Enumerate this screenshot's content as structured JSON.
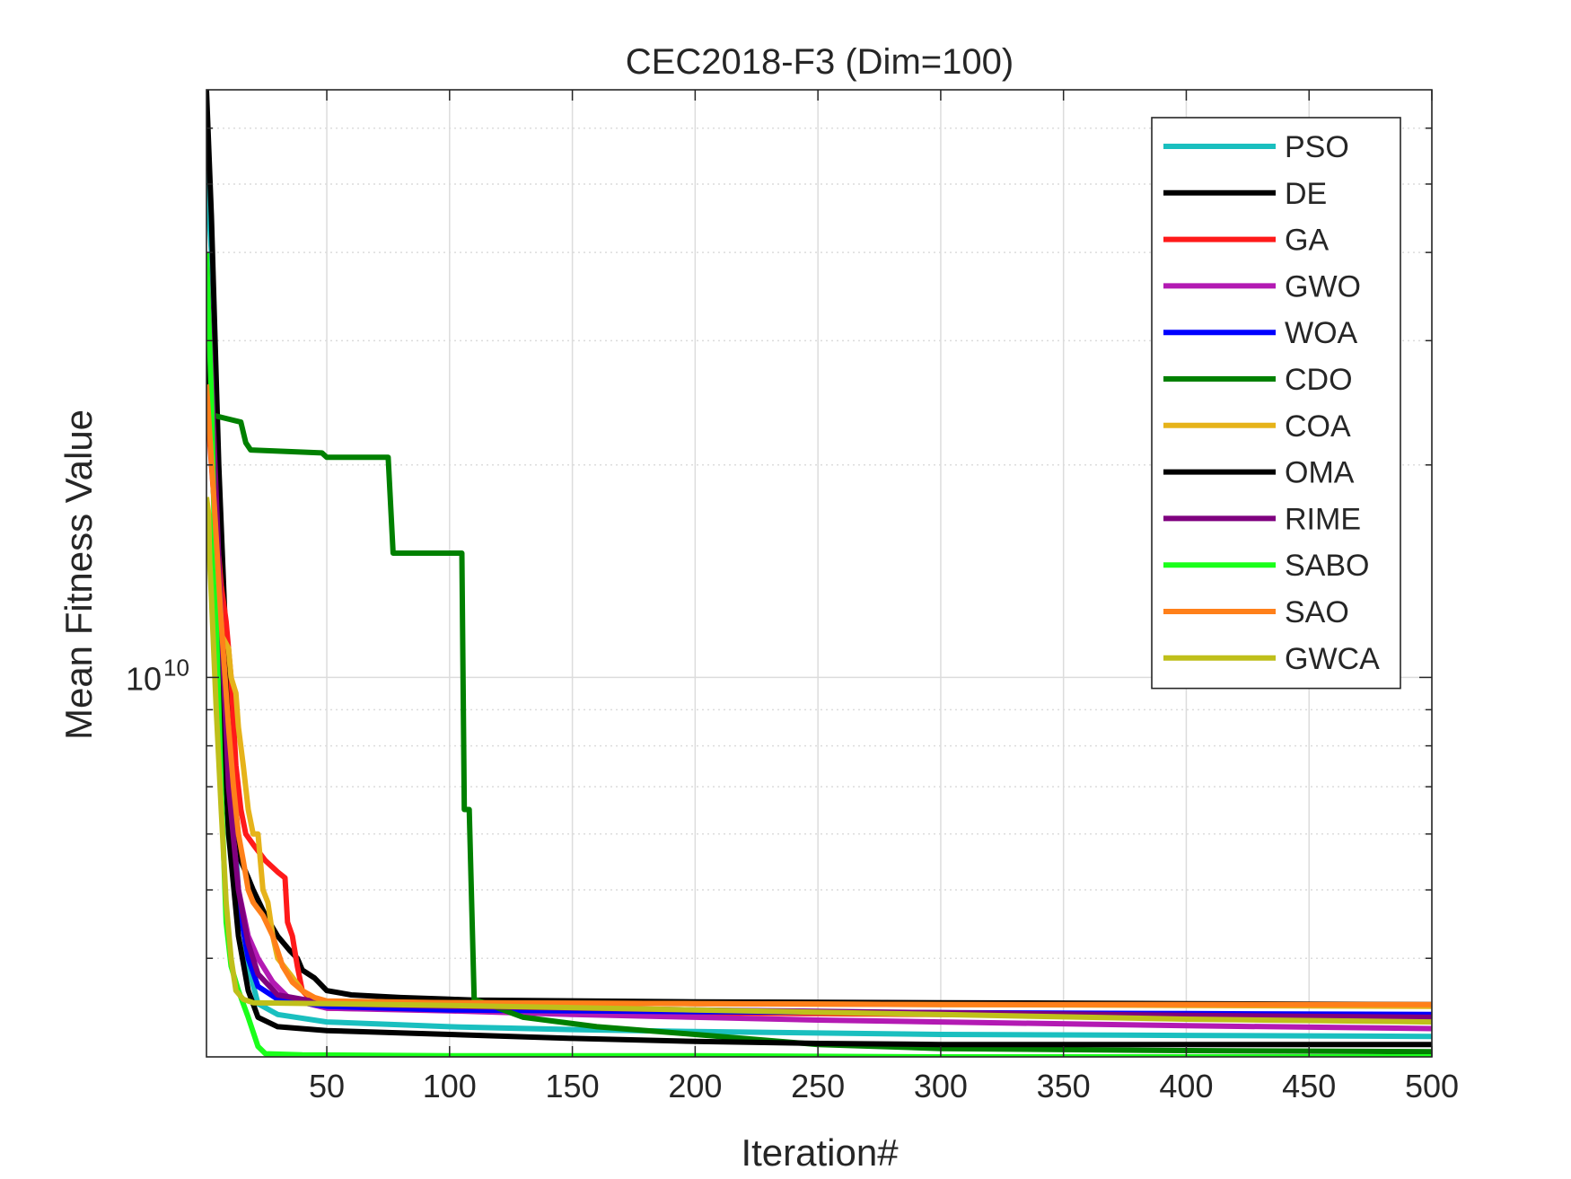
{
  "chart_data": {
    "type": "line",
    "title": "CEC2018-F3 (Dim=100)",
    "xlabel": "Iteration#",
    "ylabel": "Mean Fitness Value",
    "x_scale": "linear",
    "y_scale": "log",
    "xlim": [
      1,
      500
    ],
    "ylim": [
      2900000000.0,
      68000000000.0
    ],
    "x_ticks": [
      50,
      100,
      150,
      200,
      250,
      300,
      350,
      400,
      450,
      500
    ],
    "x_tick_labels": [
      "50",
      "100",
      "150",
      "200",
      "250",
      "300",
      "350",
      "400",
      "450",
      "500"
    ],
    "y_major_ticks": [
      10000000000
    ],
    "y_tick_labels": [
      {
        "base": "10",
        "exp": "10"
      }
    ],
    "y_minor_ticks": [
      4000000000,
      5000000000,
      6000000000,
      7000000000,
      8000000000,
      9000000000,
      20000000000,
      30000000000,
      40000000000,
      50000000000,
      60000000000
    ],
    "grid": true,
    "legend_position": "top-right",
    "series": [
      {
        "name": "PSO",
        "color": "#1ABFBF",
        "points": [
          [
            1,
            52000000000.0
          ],
          [
            3,
            40000000000.0
          ],
          [
            6,
            18000000000.0
          ],
          [
            10,
            8000000000.0
          ],
          [
            14,
            5000000000.0
          ],
          [
            18,
            3900000000.0
          ],
          [
            22,
            3450000000.0
          ],
          [
            30,
            3330000000.0
          ],
          [
            50,
            3250000000.0
          ],
          [
            100,
            3200000000.0
          ],
          [
            150,
            3170000000.0
          ],
          [
            200,
            3150000000.0
          ],
          [
            300,
            3120000000.0
          ],
          [
            400,
            3110000000.0
          ],
          [
            500,
            3100000000.0
          ]
        ]
      },
      {
        "name": "DE",
        "color": "#000000",
        "points": [
          [
            1,
            68000000000.0
          ],
          [
            3,
            45000000000.0
          ],
          [
            6,
            20000000000.0
          ],
          [
            9,
            11000000000.0
          ],
          [
            12,
            7000000000.0
          ],
          [
            15,
            5500000000.0
          ],
          [
            18,
            5200000000.0
          ],
          [
            20,
            5000000000.0
          ],
          [
            25,
            4600000000.0
          ],
          [
            30,
            4300000000.0
          ],
          [
            35,
            4100000000.0
          ],
          [
            38,
            4000000000.0
          ],
          [
            40,
            3850000000.0
          ],
          [
            45,
            3750000000.0
          ],
          [
            50,
            3600000000.0
          ],
          [
            60,
            3550000000.0
          ],
          [
            80,
            3520000000.0
          ],
          [
            100,
            3500000000.0
          ],
          [
            110,
            3490000000.0
          ],
          [
            200,
            3470000000.0
          ],
          [
            300,
            3460000000.0
          ],
          [
            400,
            3450000000.0
          ],
          [
            500,
            3440000000.0
          ]
        ]
      },
      {
        "name": "GA",
        "color": "#FF1A1A",
        "points": [
          [
            1,
            25000000000.0
          ],
          [
            4,
            18000000000.0
          ],
          [
            7,
            13500000000.0
          ],
          [
            9,
            12000000000.0
          ],
          [
            11,
            10000000000.0
          ],
          [
            13,
            7500000000.0
          ],
          [
            15,
            6500000000.0
          ],
          [
            17,
            6000000000.0
          ],
          [
            20,
            5800000000.0
          ],
          [
            25,
            5500000000.0
          ],
          [
            30,
            5300000000.0
          ],
          [
            33,
            5200000000.0
          ],
          [
            34,
            4500000000.0
          ],
          [
            36,
            4300000000.0
          ],
          [
            38,
            3900000000.0
          ],
          [
            40,
            3600000000.0
          ],
          [
            45,
            3450000000.0
          ],
          [
            50,
            3400000000.0
          ],
          [
            100,
            3380000000.0
          ],
          [
            200,
            3350000000.0
          ],
          [
            300,
            3330000000.0
          ],
          [
            400,
            3310000000.0
          ],
          [
            500,
            3300000000.0
          ]
        ]
      },
      {
        "name": "GWO",
        "color": "#B31AB3",
        "points": [
          [
            1,
            35000000000.0
          ],
          [
            4,
            20000000000.0
          ],
          [
            7,
            12000000000.0
          ],
          [
            10,
            7000000000.0
          ],
          [
            14,
            5000000000.0
          ],
          [
            18,
            4300000000.0
          ],
          [
            22,
            4000000000.0
          ],
          [
            28,
            3700000000.0
          ],
          [
            35,
            3500000000.0
          ],
          [
            50,
            3400000000.0
          ],
          [
            100,
            3370000000.0
          ],
          [
            150,
            3330000000.0
          ],
          [
            200,
            3300000000.0
          ],
          [
            250,
            3270000000.0
          ],
          [
            300,
            3250000000.0
          ],
          [
            400,
            3210000000.0
          ],
          [
            500,
            3180000000.0
          ]
        ]
      },
      {
        "name": "WOA",
        "color": "#0000FF",
        "points": [
          [
            1,
            38000000000.0
          ],
          [
            4,
            21000000000.0
          ],
          [
            7,
            11000000000.0
          ],
          [
            10,
            6500000000.0
          ],
          [
            14,
            4800000000.0
          ],
          [
            18,
            4000000000.0
          ],
          [
            22,
            3650000000.0
          ],
          [
            30,
            3500000000.0
          ],
          [
            50,
            3420000000.0
          ],
          [
            100,
            3380000000.0
          ],
          [
            200,
            3360000000.0
          ],
          [
            300,
            3350000000.0
          ],
          [
            400,
            3340000000.0
          ],
          [
            500,
            3330000000.0
          ]
        ]
      },
      {
        "name": "CDO",
        "color": "#008000",
        "points": [
          [
            1,
            24000000000.0
          ],
          [
            4,
            23500000000.0
          ],
          [
            15,
            23000000000.0
          ],
          [
            17,
            21500000000.0
          ],
          [
            19,
            21000000000.0
          ],
          [
            48,
            20800000000.0
          ],
          [
            50,
            20500000000.0
          ],
          [
            75,
            20500000000.0
          ],
          [
            77,
            15000000000.0
          ],
          [
            105,
            15000000000.0
          ],
          [
            106,
            6500000000.0
          ],
          [
            108,
            6500000000.0
          ],
          [
            110,
            3500000000.0
          ],
          [
            130,
            3300000000.0
          ],
          [
            160,
            3200000000.0
          ],
          [
            200,
            3120000000.0
          ],
          [
            250,
            3020000000.0
          ],
          [
            300,
            2980000000.0
          ],
          [
            400,
            2960000000.0
          ],
          [
            500,
            2950000000.0
          ]
        ]
      },
      {
        "name": "COA",
        "color": "#E6B31A",
        "points": [
          [
            1,
            18000000000.0
          ],
          [
            4,
            15000000000.0
          ],
          [
            7,
            11500000000.0
          ],
          [
            10,
            11000000000.0
          ],
          [
            11,
            10000000000.0
          ],
          [
            13,
            9500000000.0
          ],
          [
            14,
            8500000000.0
          ],
          [
            16,
            7500000000.0
          ],
          [
            18,
            6500000000.0
          ],
          [
            20,
            6000000000.0
          ],
          [
            22,
            6000000000.0
          ],
          [
            24,
            5000000000.0
          ],
          [
            26,
            4800000000.0
          ],
          [
            28,
            4300000000.0
          ],
          [
            30,
            4000000000.0
          ],
          [
            35,
            3800000000.0
          ],
          [
            40,
            3600000000.0
          ],
          [
            45,
            3500000000.0
          ],
          [
            50,
            3470000000.0
          ],
          [
            100,
            3460000000.0
          ],
          [
            200,
            3450000000.0
          ],
          [
            300,
            3440000000.0
          ],
          [
            400,
            3430000000.0
          ],
          [
            500,
            3420000000.0
          ]
        ]
      },
      {
        "name": "OMA",
        "color": "#000000",
        "points": [
          [
            1,
            30000000000.0
          ],
          [
            4,
            18000000000.0
          ],
          [
            7,
            10000000000.0
          ],
          [
            10,
            6000000000.0
          ],
          [
            14,
            4300000000.0
          ],
          [
            18,
            3600000000.0
          ],
          [
            22,
            3300000000.0
          ],
          [
            30,
            3200000000.0
          ],
          [
            50,
            3160000000.0
          ],
          [
            100,
            3120000000.0
          ],
          [
            150,
            3080000000.0
          ],
          [
            200,
            3050000000.0
          ],
          [
            250,
            3030000000.0
          ],
          [
            300,
            3020000000.0
          ],
          [
            400,
            3020000000.0
          ],
          [
            500,
            3020000000.0
          ]
        ]
      },
      {
        "name": "RIME",
        "color": "#7F007F",
        "points": [
          [
            1,
            40000000000.0
          ],
          [
            4,
            22000000000.0
          ],
          [
            7,
            12000000000.0
          ],
          [
            10,
            7000000000.0
          ],
          [
            14,
            5000000000.0
          ],
          [
            18,
            4200000000.0
          ],
          [
            22,
            3800000000.0
          ],
          [
            30,
            3550000000.0
          ],
          [
            50,
            3450000000.0
          ],
          [
            100,
            3420000000.0
          ],
          [
            200,
            3380000000.0
          ],
          [
            300,
            3350000000.0
          ],
          [
            400,
            3320000000.0
          ],
          [
            500,
            3300000000.0
          ]
        ]
      },
      {
        "name": "SABO",
        "color": "#1AFF1A",
        "points": [
          [
            1,
            40000000000.0
          ],
          [
            3,
            25000000000.0
          ],
          [
            5,
            12000000000.0
          ],
          [
            7,
            7000000000.0
          ],
          [
            9,
            4500000000.0
          ],
          [
            11,
            3900000000.0
          ],
          [
            14,
            3600000000.0
          ],
          [
            18,
            3300000000.0
          ],
          [
            22,
            3000000000.0
          ],
          [
            25,
            2930000000.0
          ],
          [
            40,
            2920000000.0
          ],
          [
            100,
            2910000000.0
          ],
          [
            200,
            2910000000.0
          ],
          [
            300,
            2900000000.0
          ],
          [
            400,
            2900000000.0
          ],
          [
            500,
            2900000000.0
          ]
        ]
      },
      {
        "name": "SAO",
        "color": "#FF801A",
        "points": [
          [
            1,
            26000000000.0
          ],
          [
            4,
            18000000000.0
          ],
          [
            7,
            12000000000.0
          ],
          [
            10,
            8500000000.0
          ],
          [
            12,
            7000000000.0
          ],
          [
            14,
            6000000000.0
          ],
          [
            16,
            5500000000.0
          ],
          [
            18,
            5000000000.0
          ],
          [
            20,
            4800000000.0
          ],
          [
            24,
            4600000000.0
          ],
          [
            28,
            4300000000.0
          ],
          [
            32,
            3900000000.0
          ],
          [
            36,
            3700000000.0
          ],
          [
            40,
            3600000000.0
          ],
          [
            45,
            3520000000.0
          ],
          [
            50,
            3480000000.0
          ],
          [
            100,
            3460000000.0
          ],
          [
            200,
            3450000000.0
          ],
          [
            300,
            3440000000.0
          ],
          [
            400,
            3440000000.0
          ],
          [
            500,
            3440000000.0
          ]
        ]
      },
      {
        "name": "GWCA",
        "color": "#BFBF1A",
        "points": [
          [
            1,
            18000000000.0
          ],
          [
            3,
            13000000000.0
          ],
          [
            5,
            9000000000.0
          ],
          [
            7,
            6500000000.0
          ],
          [
            9,
            4800000000.0
          ],
          [
            11,
            4000000000.0
          ],
          [
            13,
            3600000000.0
          ],
          [
            16,
            3500000000.0
          ],
          [
            20,
            3460000000.0
          ],
          [
            50,
            3450000000.0
          ],
          [
            100,
            3430000000.0
          ],
          [
            200,
            3380000000.0
          ],
          [
            300,
            3330000000.0
          ],
          [
            400,
            3280000000.0
          ],
          [
            500,
            3250000000.0
          ]
        ]
      }
    ]
  }
}
